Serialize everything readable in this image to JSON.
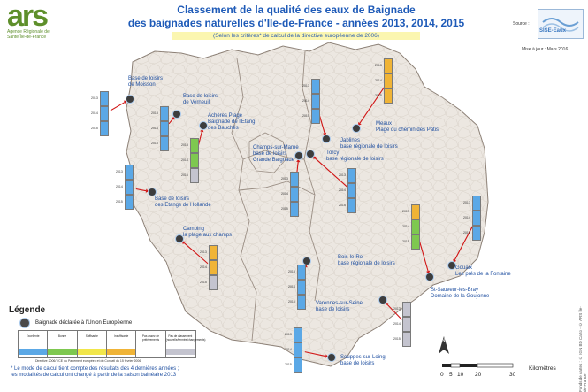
{
  "header": {
    "logo_text": "ars",
    "logo_subtitle": "Agence Régionale de Santé Île-de-France",
    "title_line1": "Classement de la qualité des eaux de Baignade",
    "title_line2": "des baignades naturelles d'Ile-de-France - années 2013, 2014, 2015",
    "subtitle": "(Selon les critères* de calcul de la directive européenne de 2006)",
    "source_label": "Source :",
    "source_name": "SISE-Eaux",
    "update_label": "Mise à jour : Mars 2016"
  },
  "colors": {
    "excellent": "#5ba8e6",
    "bonne": "#7ec850",
    "suffisante": "#f1e64a",
    "insuffisante": "#f0b437",
    "non_classe": "#c4c4cf",
    "region_fill": "#ece7e1",
    "arrow": "#d11515"
  },
  "sites": [
    {
      "name": "Base de loisirs de Moisson",
      "lines": [
        "Base de loisirs",
        "de Moisson"
      ],
      "classes": [
        "excellent",
        "excellent",
        "excellent"
      ],
      "years": [
        "2013",
        "2014",
        "2015"
      ]
    },
    {
      "name": "Base de loisirs de Verneuil",
      "lines": [
        "Base de loisirs",
        "de Verneuil"
      ],
      "classes": [
        "excellent",
        "excellent",
        "excellent"
      ],
      "years": [
        "2013",
        "2014",
        "2015"
      ]
    },
    {
      "name": "Achères Plage Baignade de l'Etang des Bauchés",
      "lines": [
        "Achères Plage",
        "Baignade de l'Etang",
        "des Bauchés"
      ],
      "classes": [
        "bonne",
        "bonne",
        "non_classe"
      ],
      "years": [
        "2013",
        "2014",
        "2015"
      ]
    },
    {
      "name": "Base de loisirs des Etangs de Hollande",
      "lines": [
        "Base de loisirs",
        "des Etangs de Hollande"
      ],
      "classes": [
        "excellent",
        "excellent",
        "excellent"
      ],
      "years": [
        "2013",
        "2014",
        "2015"
      ]
    },
    {
      "name": "Camping la plage aux champs",
      "lines": [
        "Camping",
        "la plage aux champs"
      ],
      "classes": [
        "insuffisante",
        "insuffisante",
        "non_classe"
      ],
      "years": [
        "2013",
        "2014",
        "2015"
      ]
    },
    {
      "name": "Champs-sur-Marne base de loisirs Grande Baignade",
      "lines": [
        "Champs-sur-Marne",
        "base de loisirs",
        "Grande Baignade"
      ],
      "classes": [
        "excellent",
        "excellent",
        "excellent"
      ],
      "years": [
        "2013",
        "2014",
        "2015"
      ]
    },
    {
      "name": "Jablines base régionale de loisirs",
      "lines": [
        "Jablines",
        "base régionale de loisirs"
      ],
      "classes": [
        "excellent",
        "excellent",
        "excellent"
      ],
      "years": [
        "2013",
        "2014",
        "2015"
      ]
    },
    {
      "name": "Meaux Plage du chemin des Pâtis",
      "lines": [
        "Meaux",
        "Plage du chemin des Pâtis"
      ],
      "classes": [
        "insuffisante",
        "insuffisante",
        "insuffisante"
      ],
      "years": [
        "2013",
        "2014",
        "2015"
      ]
    },
    {
      "name": "Torcy base régionale de loisirs",
      "lines": [
        "Torcy",
        "base régionale de loisirs"
      ],
      "classes": [
        "excellent",
        "excellent",
        "excellent"
      ],
      "years": [
        "2013",
        "2014",
        "2015"
      ]
    },
    {
      "name": "Bois-le-Roi base régionale de loisirs",
      "lines": [
        "Bois-le-Roi",
        "base régionale de loisirs"
      ],
      "classes": [
        "excellent",
        "excellent",
        "excellent"
      ],
      "years": [
        "2013",
        "2014",
        "2015"
      ]
    },
    {
      "name": "Gouaix Les prés de la Fontaine",
      "lines": [
        "Gouaix",
        "Les prés de la Fontaine"
      ],
      "classes": [
        "excellent",
        "excellent",
        "excellent"
      ],
      "years": [
        "2013",
        "2014",
        "2015"
      ]
    },
    {
      "name": "St-Sauveur-les-Bray Domaine de la Goujonne",
      "lines": [
        "St-Sauveur-les-Bray",
        "Domaine de la Goujonne"
      ],
      "classes": [
        "insuffisante",
        "bonne",
        "bonne"
      ],
      "years": [
        "2013",
        "2014",
        "2015"
      ]
    },
    {
      "name": "Varennes-sur-Seine base de loisirs",
      "lines": [
        "Varennes-sur-Seine",
        "base de loisirs"
      ],
      "classes": [
        "non_classe",
        "non_classe",
        "non_classe"
      ],
      "years": [
        "2013",
        "2014",
        "2015"
      ]
    },
    {
      "name": "Souppes-sur-Loing base de loisirs",
      "lines": [
        "Souppes-sur-Loing",
        "base de loisirs"
      ],
      "classes": [
        "excellent",
        "excellent",
        "excellent"
      ],
      "years": [
        "2013",
        "2014",
        "2015"
      ]
    }
  ],
  "legend": {
    "title": "Légende",
    "item_label": "Baignade déclarée à l'Union Européenne",
    "classes": [
      {
        "key": "excellent",
        "label": "Excellente"
      },
      {
        "key": "bonne",
        "label": "Bonne"
      },
      {
        "key": "suffisante",
        "label": "Suffisante"
      },
      {
        "key": "insuffisante",
        "label": "Insuffisante"
      },
      {
        "key": "pas_assez",
        "label": "Pas assez de prélèvements"
      },
      {
        "key": "non_classe",
        "label": "Pas de classement (nouvelle/fermée/changements)"
      }
    ],
    "directive_note": "Directive 2006/7/CE du Parlement européen et du Conseil du 15 février 2006",
    "footnote_line1": "* Le mode de calcul tient compte des résultats des 4 dernières années ;",
    "footnote_line2": "les modalités de calcul ont changé à partir de la saison balnéaire 2013"
  },
  "scale": {
    "ticks": [
      "0",
      "5",
      "10",
      "20",
      "30"
    ],
    "unit": "Kilomètres"
  },
  "credits": "Fonds de cartes : © IGN BD Carto - © ARS Île-de-France"
}
